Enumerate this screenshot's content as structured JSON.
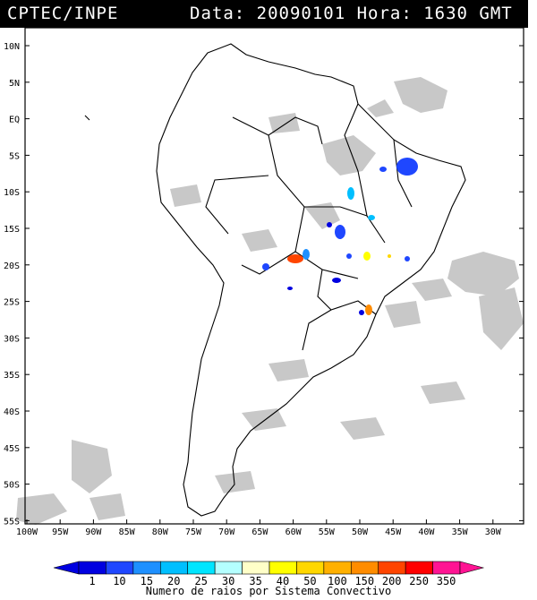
{
  "header": {
    "source": "CPTEC/INPE",
    "datetime": "Data: 20090101 Hora: 1630 GMT"
  },
  "map": {
    "lat_labels": [
      "10N",
      "5N",
      "EQ",
      "5S",
      "10S",
      "15S",
      "20S",
      "25S",
      "30S",
      "35S",
      "40S",
      "45S",
      "50S",
      "55S"
    ],
    "lon_labels": [
      "100W",
      "95W",
      "90W",
      "85W",
      "80W",
      "75W",
      "70W",
      "65W",
      "60W",
      "55W",
      "50W",
      "45W",
      "40W",
      "35W",
      "30W"
    ]
  },
  "legend": {
    "values": [
      "1",
      "10",
      "15",
      "20",
      "25",
      "30",
      "35",
      "40",
      "50",
      "100",
      "150",
      "200",
      "250",
      "350"
    ],
    "colors": [
      "#0000e0",
      "#1f47ff",
      "#1e90ff",
      "#00bfff",
      "#00e5ff",
      "#b4ffff",
      "#ffffc8",
      "#ffff00",
      "#ffd700",
      "#ffb000",
      "#ff8c00",
      "#ff4500",
      "#ff0000",
      "#ff1493"
    ],
    "caption": "Numero de raios por Sistema Convectivo"
  },
  "colors": {
    "cloud": "#c8c8c8",
    "coast": "#000000",
    "header_bg": "#000000"
  }
}
